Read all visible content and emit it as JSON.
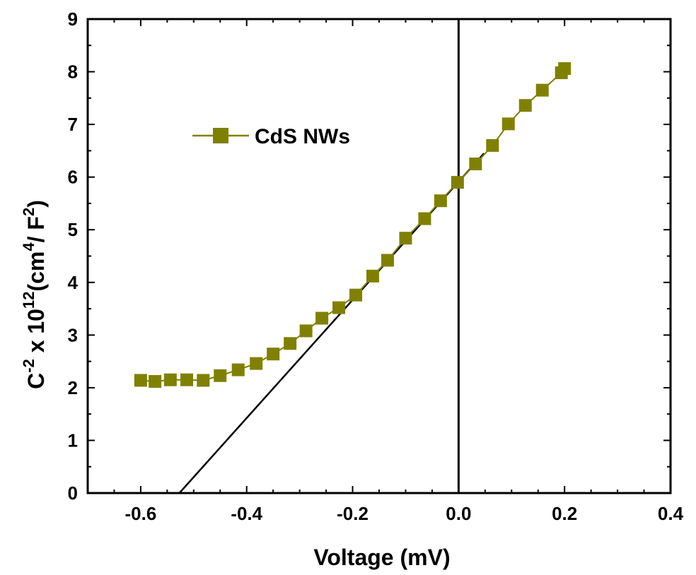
{
  "chart_data": {
    "type": "scatter",
    "xlabel": "Voltage (mV)",
    "ylabel": {
      "base": "C",
      "base_sup": "-2",
      "mid": " x 10",
      "mid_sup": "12",
      "unit_open": "(cm",
      "unit_sup": "4",
      "unit_mid": "/ F",
      "unit_sup2": "2",
      "unit_close": ")"
    },
    "xlim": [
      -0.7,
      0.4
    ],
    "ylim": [
      0,
      9
    ],
    "x_ticks": [
      "-0.6",
      "-0.4",
      "-0.2",
      "0.0",
      "0.2",
      "0.4"
    ],
    "y_ticks": [
      "0",
      "1",
      "2",
      "3",
      "4",
      "5",
      "6",
      "7",
      "8",
      "9"
    ],
    "grid": false,
    "legend_position": "upper-left",
    "series": [
      {
        "name": "CdS NWs",
        "color": "#808000",
        "marker": "square",
        "points": [
          [
            -0.6,
            2.14
          ],
          [
            -0.573,
            2.12
          ],
          [
            -0.544,
            2.15
          ],
          [
            -0.513,
            2.15
          ],
          [
            -0.482,
            2.14
          ],
          [
            -0.45,
            2.23
          ],
          [
            -0.416,
            2.34
          ],
          [
            -0.382,
            2.46
          ],
          [
            -0.35,
            2.64
          ],
          [
            -0.318,
            2.84
          ],
          [
            -0.288,
            3.08
          ],
          [
            -0.258,
            3.32
          ],
          [
            -0.226,
            3.52
          ],
          [
            -0.194,
            3.76
          ],
          [
            -0.162,
            4.12
          ],
          [
            -0.134,
            4.42
          ],
          [
            -0.1,
            4.84
          ],
          [
            -0.064,
            5.21
          ],
          [
            -0.034,
            5.55
          ],
          [
            -0.002,
            5.9
          ],
          [
            0.032,
            6.25
          ],
          [
            0.064,
            6.6
          ],
          [
            0.094,
            7.01
          ],
          [
            0.126,
            7.36
          ],
          [
            0.158,
            7.65
          ],
          [
            0.194,
            7.98
          ],
          [
            0.2,
            8.06
          ]
        ]
      }
    ],
    "fit_line": {
      "x": [
        -0.527,
        0.048
      ],
      "y": [
        0.0,
        6.45
      ],
      "color": "#000000"
    },
    "reference_line": {
      "x": 0.0,
      "color": "#000000"
    }
  }
}
